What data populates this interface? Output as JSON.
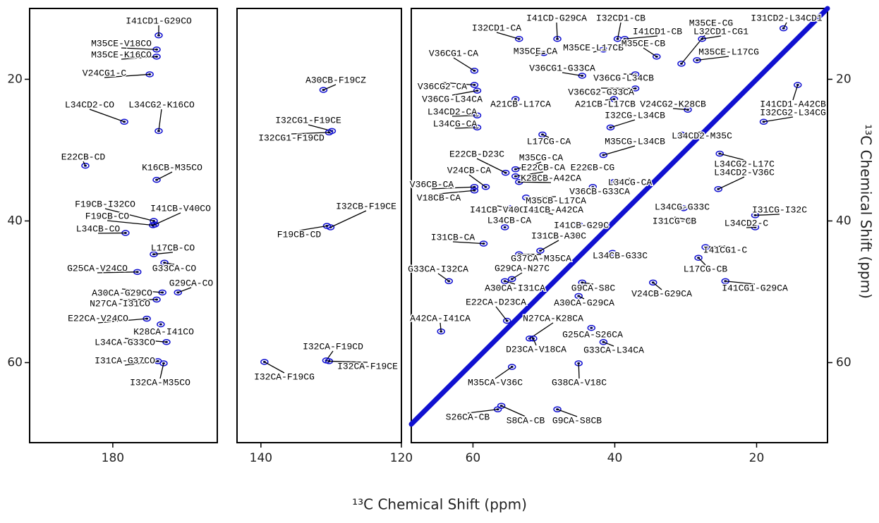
{
  "figure": {
    "xlabel": "¹³C Chemical Shift (ppm)",
    "ylabel": "¹³C Chemical Shift (ppm)"
  },
  "chart_data": [
    {
      "type": "scatter",
      "xlim": [
        200.3,
        154.5
      ],
      "ylim": [
        71.3,
        10
      ],
      "xticks": [
        180
      ],
      "yticks": [
        20,
        40,
        60
      ],
      "yaxis_side": "left",
      "color": "#1010d0",
      "annotations": [
        {
          "text": "I41CD1-G29CO",
          "x": 168.8,
          "y": 13.8
        },
        {
          "text": "M35CE-V18CO",
          "x": 169.3,
          "y": 15.8
        },
        {
          "text": "M35CE-K16CO",
          "x": 169.3,
          "y": 16.8
        },
        {
          "text": "V24CG1-C",
          "x": 171.0,
          "y": 19.3
        },
        {
          "text": "L34CD2-CO",
          "x": 177.2,
          "y": 26.0
        },
        {
          "text": "L34CG2-K16CO",
          "x": 168.8,
          "y": 27.3
        },
        {
          "text": "E22CB-CD",
          "x": 186.7,
          "y": 32.2
        },
        {
          "text": "K16CB-M35CO",
          "x": 169.3,
          "y": 34.2
        },
        {
          "text": "F19CB-I32CO",
          "x": 170.0,
          "y": 40.0
        },
        {
          "text": "I41CB-V40CO",
          "x": 169.7,
          "y": 40.5
        },
        {
          "text": "F19CB-CO",
          "x": 170.2,
          "y": 40.6
        },
        {
          "text": "L34CB-CO",
          "x": 176.9,
          "y": 41.7
        },
        {
          "text": "L17CB-CO",
          "x": 170.0,
          "y": 44.7
        },
        {
          "text": "G25CA-V24CO",
          "x": 174.0,
          "y": 47.2
        },
        {
          "text": "G33CA-CO",
          "x": 167.4,
          "y": 45.9
        },
        {
          "text": "G29CA-CO",
          "x": 164.1,
          "y": 50.1
        },
        {
          "text": "A30CA-G29CO",
          "x": 167.9,
          "y": 50.1
        },
        {
          "text": "N27CA-I31CO",
          "x": 169.3,
          "y": 51.1
        },
        {
          "text": "E22CA-V24CO",
          "x": 171.7,
          "y": 53.8
        },
        {
          "text": "K28CA-I41CO",
          "x": 168.3,
          "y": 54.6
        },
        {
          "text": "L34CA-G33CO",
          "x": 166.9,
          "y": 57.1
        },
        {
          "text": "I31CA-G37CO",
          "x": 169.0,
          "y": 59.8
        },
        {
          "text": "I32CA-M35CO",
          "x": 167.6,
          "y": 60.1
        }
      ]
    },
    {
      "type": "scatter",
      "xlim": [
        143.4,
        120
      ],
      "ylim": [
        71.3,
        10
      ],
      "xticks": [
        140,
        120
      ],
      "color": "#1010d0",
      "annotations": [
        {
          "text": "A30CB-F19CZ",
          "x": 131.1,
          "y": 21.5
        },
        {
          "text": "I32CG1-F19CE",
          "x": 129.9,
          "y": 27.3
        },
        {
          "text": "I32CG1-F19CD",
          "x": 130.3,
          "y": 27.5
        },
        {
          "text": "I32CB-F19CE",
          "x": 130.1,
          "y": 40.9
        },
        {
          "text": "F19CB-CD",
          "x": 130.6,
          "y": 40.7
        },
        {
          "text": "I32CA-F19CD",
          "x": 130.7,
          "y": 59.7
        },
        {
          "text": "I32CA-F19CE",
          "x": 130.3,
          "y": 59.8
        },
        {
          "text": "I32CA-F19CG",
          "x": 139.5,
          "y": 59.9
        }
      ]
    },
    {
      "type": "scatter",
      "xlim": [
        68.7,
        10
      ],
      "ylim": [
        71.3,
        10
      ],
      "xticks": [
        60,
        40,
        20
      ],
      "yticks": [
        20,
        40,
        60
      ],
      "yaxis_side": "right",
      "diagonal": true,
      "color": "#1010d0",
      "annotations": [
        {
          "text": "I41CD-G29CA",
          "x": 48.1,
          "y": 14.3
        },
        {
          "text": "I32CD1-CB",
          "x": 39.6,
          "y": 14.3
        },
        {
          "text": "I31CD2-L34CD1",
          "x": 16.2,
          "y": 12.8
        },
        {
          "text": "M35CE-CG",
          "x": 30.6,
          "y": 17.8
        },
        {
          "text": "I32CD1-CA",
          "x": 53.5,
          "y": 14.3
        },
        {
          "text": "I41CD1-CB",
          "x": 38.6,
          "y": 14.3
        },
        {
          "text": "L32CD1-CG1",
          "x": 27.7,
          "y": 14.3
        },
        {
          "text": "M35CE-CA",
          "x": 50.0,
          "y": 16.3
        },
        {
          "text": "M35CE-L17CB",
          "x": 41.6,
          "y": 15.8
        },
        {
          "text": "M35CE-CB",
          "x": 34.1,
          "y": 16.8
        },
        {
          "text": "V36CG1-CA",
          "x": 59.8,
          "y": 18.8
        },
        {
          "text": "M35CE-L17CG",
          "x": 28.4,
          "y": 17.3
        },
        {
          "text": "V36CG1-G33CA",
          "x": 44.6,
          "y": 19.5
        },
        {
          "text": "V36CG-L34CB",
          "x": 37.1,
          "y": 19.3
        },
        {
          "text": "V36CG2-CA",
          "x": 59.8,
          "y": 20.8
        },
        {
          "text": "V36CG2-G33CA",
          "x": 37.1,
          "y": 21.3
        },
        {
          "text": "V36CG-L34CA",
          "x": 59.4,
          "y": 21.6
        },
        {
          "text": "A21CB-L17CA",
          "x": 54.0,
          "y": 22.8
        },
        {
          "text": "A21CB-L17CB",
          "x": 40.1,
          "y": 22.8
        },
        {
          "text": "V24CG2-K28CB",
          "x": 29.7,
          "y": 24.3
        },
        {
          "text": "I41CD1-A42CB",
          "x": 14.2,
          "y": 20.8
        },
        {
          "text": "I32CG2-L34CG",
          "x": 19.0,
          "y": 26.0
        },
        {
          "text": "L34CD2-CA",
          "x": 59.4,
          "y": 25.1
        },
        {
          "text": "I32CG-L34CB",
          "x": 40.6,
          "y": 26.8
        },
        {
          "text": "L34CG-CA",
          "x": 59.4,
          "y": 26.8
        },
        {
          "text": "L34CD2-M35C",
          "x": 30.6,
          "y": 27.8
        },
        {
          "text": "L17CG-CA",
          "x": 50.2,
          "y": 27.8
        },
        {
          "text": "M35CG-L34CB",
          "x": 41.6,
          "y": 30.7
        },
        {
          "text": "E22CB-D23C",
          "x": 55.4,
          "y": 33.2
        },
        {
          "text": "M35CG-CA",
          "x": 54.0,
          "y": 32.7
        },
        {
          "text": "E22CB-CG",
          "x": 43.6,
          "y": 32.5
        },
        {
          "text": "L34CG2-L17C",
          "x": 25.2,
          "y": 30.5
        },
        {
          "text": "V24CB-CA",
          "x": 58.2,
          "y": 35.2
        },
        {
          "text": "E22CB-CA",
          "x": 54.0,
          "y": 33.7
        },
        {
          "text": "L34CD2-V36C",
          "x": 25.4,
          "y": 35.5
        },
        {
          "text": "K28CB-A42CA",
          "x": 53.5,
          "y": 34.5
        },
        {
          "text": "L34CG-CA",
          "x": 40.1,
          "y": 34.5
        },
        {
          "text": "V36CB-CA",
          "x": 59.8,
          "y": 35.2
        },
        {
          "text": "V36CB-G33CA",
          "x": 43.1,
          "y": 35.2
        },
        {
          "text": "V18CB-CA",
          "x": 59.8,
          "y": 35.7
        },
        {
          "text": "M35CB-L17CA",
          "x": 52.5,
          "y": 36.7
        },
        {
          "text": "I41CB-V40C",
          "x": 54.8,
          "y": 38.2
        },
        {
          "text": "I41CB-A42CA",
          "x": 51.5,
          "y": 38.5
        },
        {
          "text": "L34CG-G33C",
          "x": 30.3,
          "y": 38.2
        },
        {
          "text": "I31CG-I32C",
          "x": 20.2,
          "y": 39.2
        },
        {
          "text": "L34CB-CA",
          "x": 55.5,
          "y": 40.9
        },
        {
          "text": "I31CG-CB",
          "x": 29.4,
          "y": 39.9
        },
        {
          "text": "L34CD2-C",
          "x": 20.2,
          "y": 40.9
        },
        {
          "text": "I41CB-G29C",
          "x": 45.1,
          "y": 40.5
        },
        {
          "text": "I31CB-CA",
          "x": 58.5,
          "y": 43.2
        },
        {
          "text": "I31CB-A30C",
          "x": 50.5,
          "y": 44.2
        },
        {
          "text": "I41CG1-C",
          "x": 27.2,
          "y": 43.7
        },
        {
          "text": "L34CB-G33C",
          "x": 40.3,
          "y": 44.5
        },
        {
          "text": "G37CA-M35CA",
          "x": 53.5,
          "y": 44.7
        },
        {
          "text": "L17CG-CB",
          "x": 28.2,
          "y": 45.2
        },
        {
          "text": "G33CA-I32CA",
          "x": 63.4,
          "y": 48.5
        },
        {
          "text": "G29CA-N27C",
          "x": 54.5,
          "y": 48.2
        },
        {
          "text": "A30CA-I31CA",
          "x": 55.5,
          "y": 48.5
        },
        {
          "text": "G9CA-S8C",
          "x": 44.6,
          "y": 48.7
        },
        {
          "text": "I41CG1-G29CA",
          "x": 24.4,
          "y": 48.5
        },
        {
          "text": "V24CB-G29CA",
          "x": 34.6,
          "y": 48.7
        },
        {
          "text": "A30CA-G29CA",
          "x": 45.1,
          "y": 50.6
        },
        {
          "text": "E22CA-D23CA",
          "x": 55.2,
          "y": 54.1
        },
        {
          "text": "A42CA-I41CA",
          "x": 64.5,
          "y": 55.6
        },
        {
          "text": "N27CA-K28CA",
          "x": 52.0,
          "y": 56.6
        },
        {
          "text": "G25CA-S26CA",
          "x": 43.3,
          "y": 55.1
        },
        {
          "text": "D23CA-V18CA",
          "x": 51.5,
          "y": 56.6
        },
        {
          "text": "G33CA-L34CA",
          "x": 41.6,
          "y": 57.1
        },
        {
          "text": "M35CA-V36C",
          "x": 54.5,
          "y": 60.6
        },
        {
          "text": "G38CA-V18C",
          "x": 45.1,
          "y": 60.1
        },
        {
          "text": "S26CA-CB",
          "x": 56.5,
          "y": 66.6
        },
        {
          "text": "S8CA-CB",
          "x": 56.0,
          "y": 66.1
        },
        {
          "text": "G9CA-S8CB",
          "x": 48.1,
          "y": 66.6
        }
      ]
    }
  ]
}
